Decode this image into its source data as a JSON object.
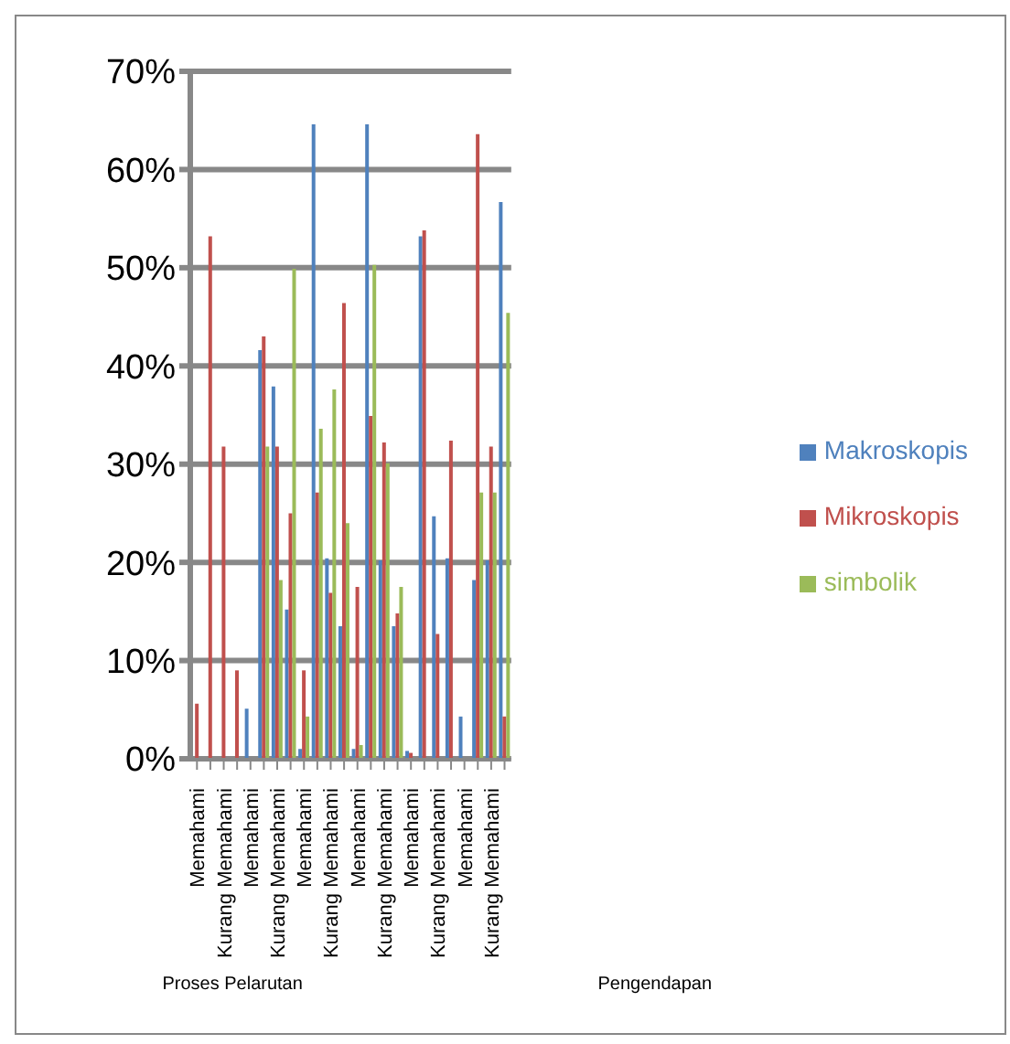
{
  "chart_data": {
    "type": "bar",
    "categories": [
      "Memahami",
      null,
      "Kurang Memahami",
      null,
      "Memahami",
      null,
      "Kurang Memahami",
      null,
      "Memahami",
      null,
      "Kurang Memahami",
      null,
      "Memahami",
      null,
      "Kurang Memahami",
      null,
      "Memahami",
      null,
      "Kurang Memahami",
      null,
      "Memahami",
      null,
      "Kurang Memahami",
      null
    ],
    "series": [
      {
        "name": "Makroskopis",
        "color": "#4f81bd",
        "values": [
          0,
          0,
          0,
          0,
          5.1,
          41.6,
          37.9,
          15.2,
          1.0,
          64.6,
          20.4,
          13.5,
          1.0,
          64.6,
          20.2,
          13.5,
          0.8,
          53.2,
          24.7,
          20.4,
          4.3,
          18.2,
          20.2,
          56.7
        ]
      },
      {
        "name": "Mikroskopis",
        "color": "#c0504d",
        "values": [
          5.6,
          53.2,
          31.8,
          9.0,
          0,
          43.0,
          31.8,
          25.0,
          9.0,
          27.1,
          16.9,
          46.4,
          17.5,
          34.9,
          32.2,
          14.8,
          0.6,
          53.8,
          12.7,
          32.4,
          0,
          63.6,
          31.8,
          4.3
        ]
      },
      {
        "name": "simbolik",
        "color": "#9bbb59",
        "values": [
          0,
          0,
          0,
          0,
          0,
          31.8,
          18.2,
          49.9,
          4.3,
          33.6,
          37.6,
          24.0,
          1.4,
          50.3,
          30.1,
          17.5,
          0,
          0,
          0,
          0,
          0,
          27.1,
          27.1,
          45.4
        ]
      }
    ],
    "ylim": [
      0,
      70
    ],
    "yticks": [
      {
        "value": 0,
        "label": "0%"
      },
      {
        "value": 10,
        "label": "10%"
      },
      {
        "value": 20,
        "label": "20%"
      },
      {
        "value": 30,
        "label": "30%"
      },
      {
        "value": 40,
        "label": "40%"
      },
      {
        "value": 50,
        "label": "50%"
      },
      {
        "value": 60,
        "label": "60%"
      },
      {
        "value": 70,
        "label": "70%"
      }
    ],
    "grid": "y",
    "legend": "right",
    "annotations": [
      "Proses Pelarutan",
      "Pengendapan"
    ]
  }
}
